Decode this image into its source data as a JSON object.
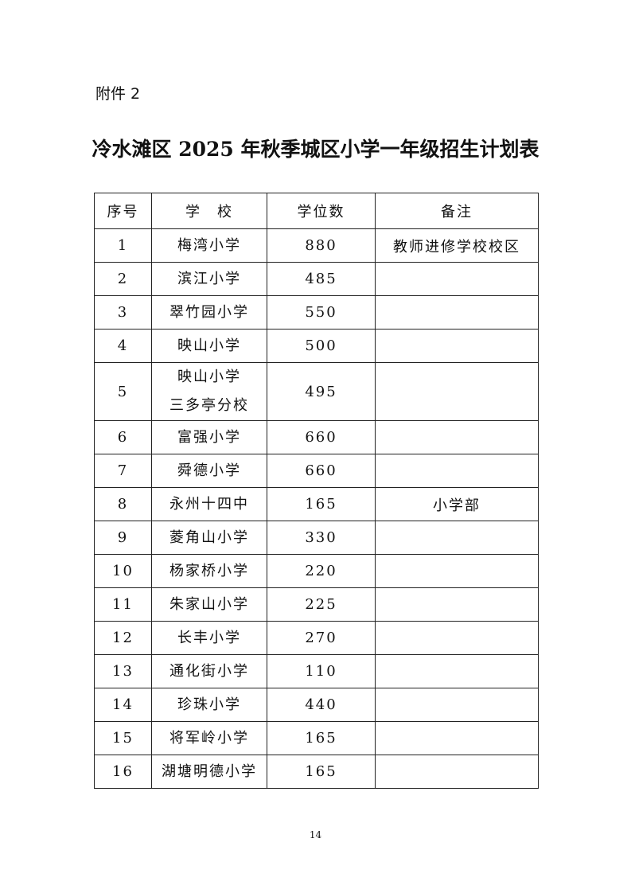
{
  "attachment_label": "附件 2",
  "title": "冷水滩区 2025 年秋季城区小学一年级招生计划表",
  "table": {
    "headers": [
      "序号",
      "学　校",
      "学位数",
      "备注"
    ],
    "rows": [
      {
        "no": "1",
        "school": [
          "梅湾小学"
        ],
        "seats": "880",
        "note": "教师进修学校校区"
      },
      {
        "no": "2",
        "school": [
          "滨江小学"
        ],
        "seats": "485",
        "note": ""
      },
      {
        "no": "3",
        "school": [
          "翠竹园小学"
        ],
        "seats": "550",
        "note": ""
      },
      {
        "no": "4",
        "school": [
          "映山小学"
        ],
        "seats": "500",
        "note": ""
      },
      {
        "no": "5",
        "school": [
          "映山小学",
          "三多亭分校"
        ],
        "seats": "495",
        "note": ""
      },
      {
        "no": "6",
        "school": [
          "富强小学"
        ],
        "seats": "660",
        "note": ""
      },
      {
        "no": "7",
        "school": [
          "舜德小学"
        ],
        "seats": "660",
        "note": ""
      },
      {
        "no": "8",
        "school": [
          "永州十四中"
        ],
        "seats": "165",
        "note": "小学部"
      },
      {
        "no": "9",
        "school": [
          "菱角山小学"
        ],
        "seats": "330",
        "note": ""
      },
      {
        "no": "10",
        "school": [
          "杨家桥小学"
        ],
        "seats": "220",
        "note": ""
      },
      {
        "no": "11",
        "school": [
          "朱家山小学"
        ],
        "seats": "225",
        "note": ""
      },
      {
        "no": "12",
        "school": [
          "长丰小学"
        ],
        "seats": "270",
        "note": ""
      },
      {
        "no": "13",
        "school": [
          "通化街小学"
        ],
        "seats": "110",
        "note": ""
      },
      {
        "no": "14",
        "school": [
          "珍珠小学"
        ],
        "seats": "440",
        "note": ""
      },
      {
        "no": "15",
        "school": [
          "将军岭小学"
        ],
        "seats": "165",
        "note": ""
      },
      {
        "no": "16",
        "school": [
          "湖塘明德小学"
        ],
        "seats": "165",
        "note": ""
      }
    ]
  },
  "page_number": "14"
}
